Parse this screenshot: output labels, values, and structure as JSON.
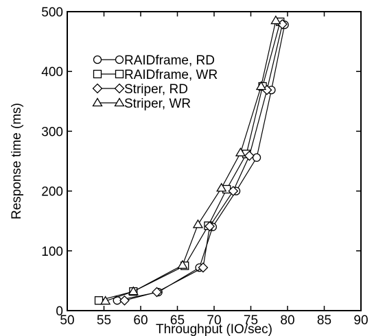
{
  "chart_data": {
    "type": "line",
    "title": "",
    "xlabel": "Throughput (IO/sec)",
    "ylabel": "Response time (ms)",
    "xlim": [
      50,
      90
    ],
    "ylim": [
      0,
      500
    ],
    "xticks": [
      50,
      55,
      60,
      65,
      70,
      75,
      80,
      85,
      90
    ],
    "yticks": [
      0,
      100,
      200,
      300,
      400,
      500
    ],
    "grid": false,
    "legend_position": "top-left",
    "series": [
      {
        "name": "RAIDframe, RD",
        "marker": "circle",
        "x": [
          56.8,
          62.4,
          68.0,
          69.8,
          73.0,
          75.8,
          77.8,
          79.6
        ],
        "y": [
          17,
          31,
          72,
          140,
          200,
          256,
          369,
          478
        ]
      },
      {
        "name": "RAIDframe, WR",
        "marker": "square",
        "x": [
          54.3,
          59.0,
          66.0,
          69.2,
          71.7,
          74.4,
          76.6,
          79.0
        ],
        "y": [
          17,
          32,
          75,
          142,
          203,
          262,
          375,
          483
        ]
      },
      {
        "name": "Striper, RD",
        "marker": "diamond",
        "x": [
          57.8,
          62.2,
          68.5,
          69.4,
          72.6,
          74.8,
          77.2,
          79.3
        ],
        "y": [
          17,
          31,
          72,
          141,
          200,
          259,
          369,
          479
        ]
      },
      {
        "name": "Striper, WR",
        "marker": "triangle",
        "x": [
          55.2,
          59.0,
          65.7,
          67.8,
          71.0,
          73.6,
          76.4,
          78.4
        ],
        "y": [
          16,
          32,
          76,
          144,
          205,
          264,
          375,
          485
        ]
      }
    ]
  }
}
